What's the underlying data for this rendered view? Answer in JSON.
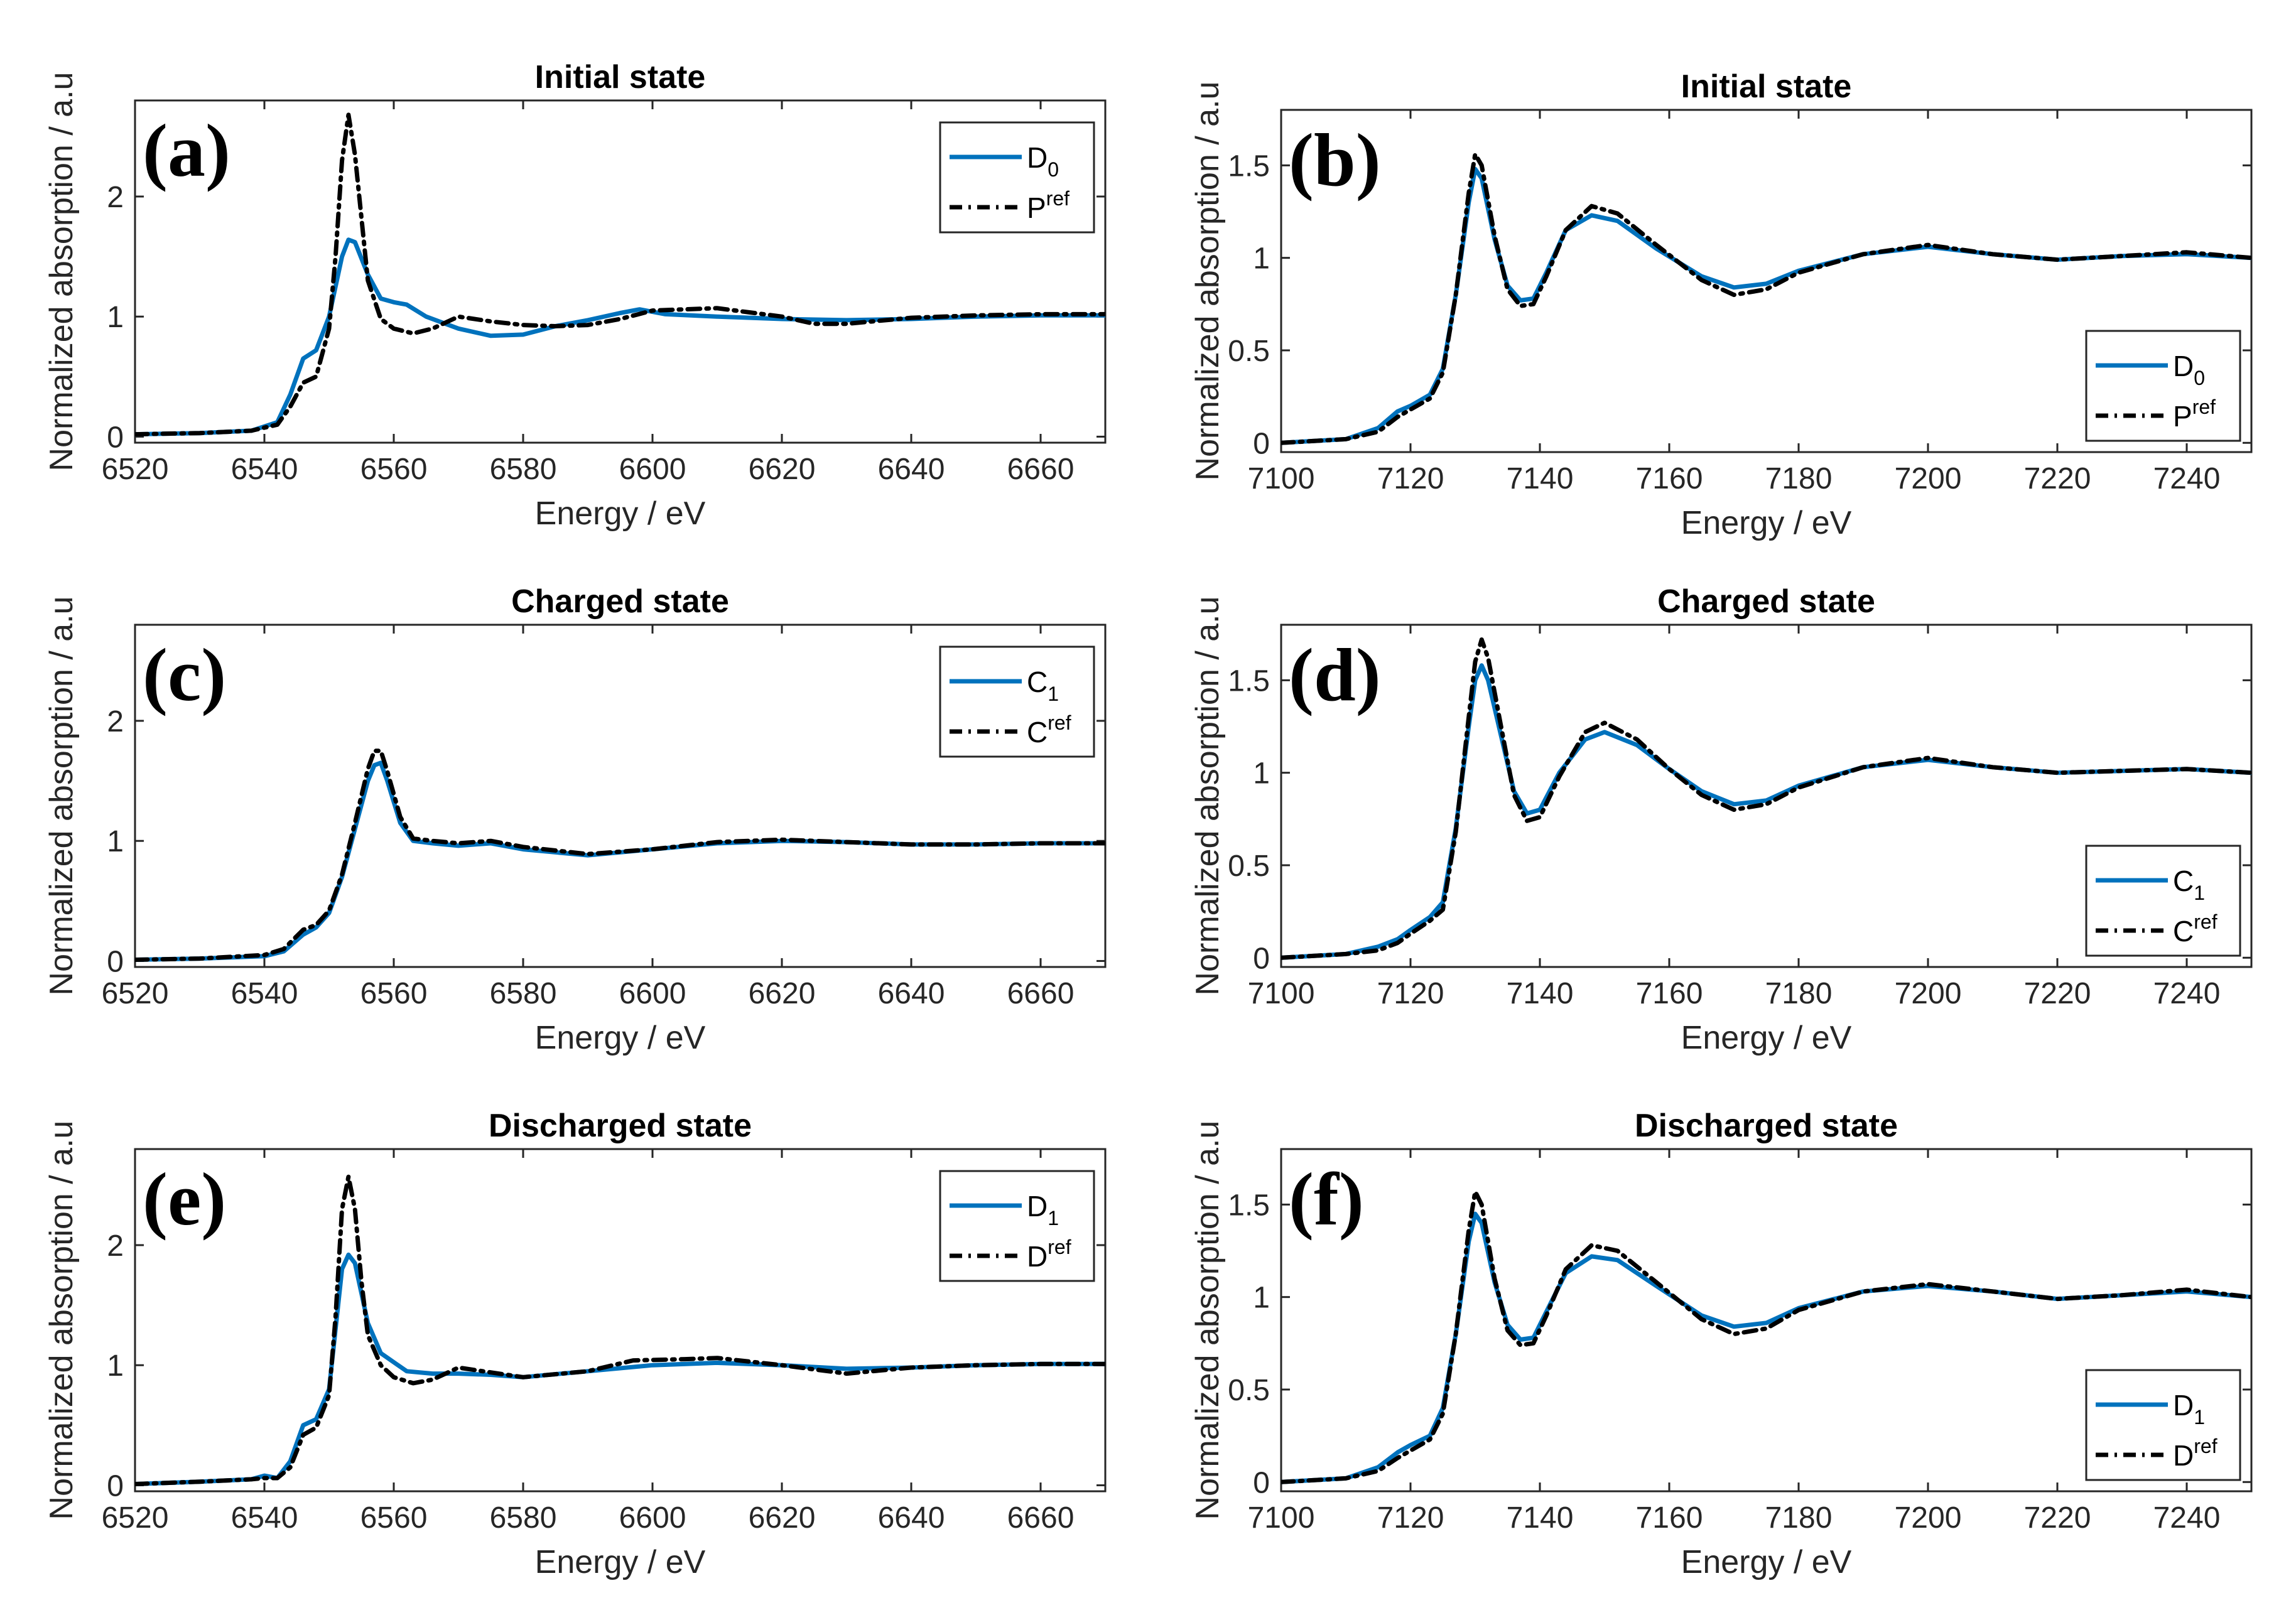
{
  "figure": {
    "colors": {
      "measured": "#0072BD",
      "reference": "#000000",
      "axis": "#262626"
    }
  },
  "chart_data": [
    {
      "panel": "(a)",
      "type": "line",
      "title": "Initial state",
      "xlabel": "Energy / eV",
      "ylabel": "Normalized absorption / a.u",
      "xlim": [
        6520,
        6670
      ],
      "ylim": [
        -0.05,
        2.8
      ],
      "xticks": [
        6520,
        6540,
        6560,
        6580,
        6600,
        6620,
        6640,
        6660
      ],
      "yticks": [
        0,
        1,
        2
      ],
      "ytick_labels": [
        "0",
        "1",
        "2"
      ],
      "legend_position": "top-right",
      "series": [
        {
          "name_main": "D",
          "name_script": "0",
          "script": "sub",
          "style": "solid",
          "x": [
            6520,
            6530,
            6538,
            6542,
            6544,
            6546,
            6548,
            6550,
            6552,
            6553,
            6554,
            6556,
            6558,
            6560,
            6562,
            6565,
            6570,
            6575,
            6580,
            6585,
            6590,
            6595,
            6598,
            6602,
            6610,
            6620,
            6630,
            6640,
            6650,
            6660,
            6670
          ],
          "y": [
            0.02,
            0.03,
            0.05,
            0.12,
            0.35,
            0.65,
            0.72,
            1.0,
            1.5,
            1.64,
            1.62,
            1.35,
            1.15,
            1.12,
            1.1,
            1.0,
            0.9,
            0.84,
            0.85,
            0.92,
            0.97,
            1.03,
            1.06,
            1.02,
            1.0,
            0.98,
            0.97,
            0.98,
            1.0,
            1.01,
            1.01
          ]
        },
        {
          "name_main": "P",
          "name_script": "ref",
          "script": "sup",
          "style": "dashdot",
          "x": [
            6520,
            6530,
            6538,
            6542,
            6544,
            6546,
            6548,
            6550,
            6551,
            6552,
            6553,
            6554,
            6556,
            6558,
            6560,
            6563,
            6566,
            6570,
            6575,
            6580,
            6585,
            6590,
            6595,
            6600,
            6610,
            6620,
            6625,
            6630,
            6640,
            6650,
            6660,
            6670
          ],
          "y": [
            0.02,
            0.03,
            0.05,
            0.1,
            0.25,
            0.45,
            0.5,
            0.9,
            1.5,
            2.3,
            2.68,
            2.35,
            1.3,
            0.98,
            0.9,
            0.86,
            0.9,
            1.0,
            0.96,
            0.93,
            0.92,
            0.93,
            0.98,
            1.05,
            1.07,
            1.0,
            0.94,
            0.94,
            0.99,
            1.01,
            1.02,
            1.02
          ]
        }
      ]
    },
    {
      "panel": "(b)",
      "type": "line",
      "title": "Initial state",
      "xlabel": "Energy / eV",
      "ylabel": "Normalized absorption / a.u",
      "xlim": [
        7100,
        7250
      ],
      "ylim": [
        -0.05,
        1.8
      ],
      "xticks": [
        7100,
        7120,
        7140,
        7160,
        7180,
        7200,
        7220,
        7240
      ],
      "yticks": [
        0,
        0.5,
        1,
        1.5
      ],
      "ytick_labels": [
        "0",
        "0.5",
        "1",
        "1.5"
      ],
      "legend_position": "bottom-right",
      "series": [
        {
          "name_main": "D",
          "name_script": "0",
          "script": "sub",
          "style": "solid",
          "x": [
            7100,
            7110,
            7115,
            7118,
            7120,
            7123,
            7125,
            7127,
            7129,
            7130,
            7131,
            7133,
            7135,
            7137,
            7139,
            7141,
            7144,
            7148,
            7152,
            7158,
            7165,
            7170,
            7175,
            7180,
            7190,
            7200,
            7210,
            7220,
            7230,
            7240,
            7250
          ],
          "y": [
            0.0,
            0.02,
            0.08,
            0.17,
            0.2,
            0.26,
            0.4,
            0.8,
            1.3,
            1.48,
            1.43,
            1.1,
            0.85,
            0.77,
            0.78,
            0.92,
            1.15,
            1.23,
            1.2,
            1.05,
            0.9,
            0.84,
            0.86,
            0.93,
            1.02,
            1.06,
            1.02,
            0.99,
            1.01,
            1.02,
            1.0
          ]
        },
        {
          "name_main": "P",
          "name_script": "ref",
          "script": "sup",
          "style": "dashdot",
          "x": [
            7100,
            7110,
            7115,
            7118,
            7120,
            7123,
            7125,
            7127,
            7129,
            7130,
            7131,
            7133,
            7135,
            7137,
            7139,
            7141,
            7144,
            7148,
            7152,
            7158,
            7165,
            7170,
            7175,
            7180,
            7190,
            7200,
            7210,
            7220,
            7230,
            7240,
            7250
          ],
          "y": [
            0.0,
            0.02,
            0.06,
            0.14,
            0.18,
            0.24,
            0.38,
            0.8,
            1.35,
            1.56,
            1.5,
            1.12,
            0.83,
            0.74,
            0.75,
            0.9,
            1.15,
            1.28,
            1.24,
            1.07,
            0.88,
            0.8,
            0.83,
            0.92,
            1.02,
            1.07,
            1.02,
            0.99,
            1.01,
            1.03,
            1.0
          ]
        }
      ]
    },
    {
      "panel": "(c)",
      "type": "line",
      "title": "Charged state",
      "xlabel": "Energy / eV",
      "ylabel": "Normalized absorption / a.u",
      "xlim": [
        6520,
        6670
      ],
      "ylim": [
        -0.05,
        2.8
      ],
      "xticks": [
        6520,
        6540,
        6560,
        6580,
        6600,
        6620,
        6640,
        6660
      ],
      "yticks": [
        0,
        1,
        2
      ],
      "ytick_labels": [
        "0",
        "1",
        "2"
      ],
      "legend_position": "top-right",
      "series": [
        {
          "name_main": "C",
          "name_script": "1",
          "script": "sub",
          "style": "solid",
          "x": [
            6520,
            6530,
            6540,
            6543,
            6546,
            6548,
            6550,
            6552,
            6554,
            6556,
            6557,
            6558,
            6559,
            6561,
            6563,
            6566,
            6570,
            6575,
            6580,
            6590,
            6600,
            6610,
            6620,
            6630,
            6640,
            6650,
            6660,
            6670
          ],
          "y": [
            0.01,
            0.02,
            0.04,
            0.08,
            0.22,
            0.28,
            0.4,
            0.7,
            1.1,
            1.5,
            1.63,
            1.65,
            1.5,
            1.15,
            1.0,
            0.98,
            0.96,
            0.98,
            0.93,
            0.88,
            0.93,
            0.98,
            1.0,
            0.99,
            0.97,
            0.97,
            0.98,
            0.98
          ]
        },
        {
          "name_main": "C",
          "name_script": "ref",
          "script": "sup",
          "style": "dashdot",
          "x": [
            6520,
            6530,
            6540,
            6543,
            6546,
            6548,
            6550,
            6552,
            6554,
            6556,
            6557,
            6558,
            6559,
            6561,
            6563,
            6566,
            6570,
            6575,
            6580,
            6590,
            6600,
            6610,
            6620,
            6630,
            6640,
            6650,
            6660,
            6670
          ],
          "y": [
            0.01,
            0.02,
            0.05,
            0.1,
            0.26,
            0.3,
            0.42,
            0.72,
            1.15,
            1.6,
            1.75,
            1.75,
            1.58,
            1.2,
            1.02,
            1.0,
            0.98,
            1.0,
            0.95,
            0.89,
            0.93,
            0.99,
            1.01,
            0.99,
            0.97,
            0.97,
            0.98,
            0.98
          ]
        }
      ]
    },
    {
      "panel": "(d)",
      "type": "line",
      "title": "Charged state",
      "xlabel": "Energy / eV",
      "ylabel": "Normalized absorption / a.u",
      "xlim": [
        7100,
        7250
      ],
      "ylim": [
        -0.05,
        1.8
      ],
      "xticks": [
        7100,
        7120,
        7140,
        7160,
        7180,
        7200,
        7220,
        7240
      ],
      "yticks": [
        0,
        0.5,
        1,
        1.5
      ],
      "ytick_labels": [
        "0",
        "0.5",
        "1",
        "1.5"
      ],
      "legend_position": "bottom-right",
      "series": [
        {
          "name_main": "C",
          "name_script": "1",
          "script": "sub",
          "style": "solid",
          "x": [
            7100,
            7110,
            7115,
            7118,
            7120,
            7123,
            7125,
            7127,
            7129,
            7130,
            7131,
            7132,
            7134,
            7136,
            7138,
            7140,
            7143,
            7147,
            7150,
            7155,
            7160,
            7165,
            7170,
            7175,
            7180,
            7190,
            7200,
            7210,
            7220,
            7230,
            7240,
            7250
          ],
          "y": [
            0.0,
            0.02,
            0.06,
            0.1,
            0.15,
            0.22,
            0.3,
            0.7,
            1.25,
            1.5,
            1.58,
            1.5,
            1.2,
            0.9,
            0.78,
            0.8,
            1.0,
            1.18,
            1.22,
            1.15,
            1.02,
            0.9,
            0.83,
            0.85,
            0.93,
            1.03,
            1.07,
            1.03,
            1.0,
            1.01,
            1.02,
            1.0
          ]
        },
        {
          "name_main": "C",
          "name_script": "ref",
          "script": "sup",
          "style": "dashdot",
          "x": [
            7100,
            7110,
            7115,
            7118,
            7120,
            7123,
            7125,
            7127,
            7129,
            7130,
            7131,
            7132,
            7134,
            7136,
            7138,
            7140,
            7143,
            7147,
            7150,
            7155,
            7160,
            7165,
            7170,
            7175,
            7180,
            7190,
            7200,
            7210,
            7220,
            7230,
            7240,
            7250
          ],
          "y": [
            0.0,
            0.02,
            0.04,
            0.08,
            0.13,
            0.2,
            0.26,
            0.68,
            1.3,
            1.6,
            1.72,
            1.62,
            1.25,
            0.88,
            0.74,
            0.76,
            0.98,
            1.22,
            1.27,
            1.18,
            1.02,
            0.88,
            0.8,
            0.83,
            0.92,
            1.03,
            1.08,
            1.03,
            1.0,
            1.01,
            1.02,
            1.0
          ]
        }
      ]
    },
    {
      "panel": "(e)",
      "type": "line",
      "title": "Discharged state",
      "xlabel": "Energy / eV",
      "ylabel": "Normalized absorption / a.u",
      "xlim": [
        6520,
        6670
      ],
      "ylim": [
        -0.05,
        2.8
      ],
      "xticks": [
        6520,
        6540,
        6560,
        6580,
        6600,
        6620,
        6640,
        6660
      ],
      "yticks": [
        0,
        1,
        2
      ],
      "ytick_labels": [
        "0",
        "1",
        "2"
      ],
      "legend_position": "top-right",
      "series": [
        {
          "name_main": "D",
          "name_script": "1",
          "script": "sub",
          "style": "solid",
          "x": [
            6520,
            6530,
            6538,
            6540,
            6542,
            6544,
            6546,
            6548,
            6550,
            6551,
            6552,
            6553,
            6554,
            6556,
            6558,
            6562,
            6566,
            6570,
            6575,
            6580,
            6590,
            6600,
            6610,
            6620,
            6630,
            6640,
            6650,
            6660,
            6670
          ],
          "y": [
            0.01,
            0.03,
            0.05,
            0.08,
            0.06,
            0.2,
            0.5,
            0.55,
            0.8,
            1.3,
            1.8,
            1.92,
            1.85,
            1.35,
            1.1,
            0.95,
            0.93,
            0.93,
            0.92,
            0.9,
            0.95,
            1.0,
            1.02,
            1.0,
            0.97,
            0.98,
            1.0,
            1.01,
            1.01
          ]
        },
        {
          "name_main": "D",
          "name_script": "ref",
          "script": "sup",
          "style": "dashdot",
          "x": [
            6520,
            6530,
            6538,
            6540,
            6542,
            6544,
            6546,
            6548,
            6550,
            6551,
            6552,
            6553,
            6554,
            6555,
            6556,
            6558,
            6560,
            6563,
            6566,
            6570,
            6575,
            6580,
            6590,
            6597,
            6605,
            6610,
            6620,
            6630,
            6640,
            6650,
            6660,
            6670
          ],
          "y": [
            0.01,
            0.03,
            0.05,
            0.06,
            0.06,
            0.15,
            0.42,
            0.48,
            0.75,
            1.4,
            2.3,
            2.57,
            2.3,
            1.7,
            1.25,
            1.0,
            0.9,
            0.85,
            0.88,
            0.98,
            0.94,
            0.9,
            0.95,
            1.04,
            1.05,
            1.06,
            1.0,
            0.93,
            0.98,
            1.0,
            1.01,
            1.01
          ]
        }
      ]
    },
    {
      "panel": "(f)",
      "type": "line",
      "title": "Discharged state",
      "xlabel": "Energy / eV",
      "ylabel": "Normalized absorption / a.u",
      "xlim": [
        7100,
        7250
      ],
      "ylim": [
        -0.05,
        1.8
      ],
      "xticks": [
        7100,
        7120,
        7140,
        7160,
        7180,
        7200,
        7220,
        7240
      ],
      "yticks": [
        0,
        0.5,
        1,
        1.5
      ],
      "ytick_labels": [
        "0",
        "0.5",
        "1",
        "1.5"
      ],
      "legend_position": "bottom-right",
      "series": [
        {
          "name_main": "D",
          "name_script": "1",
          "script": "sub",
          "style": "solid",
          "x": [
            7100,
            7110,
            7115,
            7118,
            7120,
            7123,
            7125,
            7127,
            7129,
            7130,
            7131,
            7133,
            7135,
            7137,
            7139,
            7141,
            7144,
            7148,
            7152,
            7158,
            7165,
            7170,
            7175,
            7180,
            7190,
            7200,
            7210,
            7220,
            7230,
            7240,
            7250
          ],
          "y": [
            0.0,
            0.02,
            0.08,
            0.16,
            0.2,
            0.25,
            0.4,
            0.8,
            1.3,
            1.45,
            1.4,
            1.08,
            0.85,
            0.77,
            0.78,
            0.92,
            1.13,
            1.22,
            1.2,
            1.06,
            0.9,
            0.84,
            0.86,
            0.94,
            1.03,
            1.06,
            1.03,
            0.99,
            1.01,
            1.03,
            1.0
          ]
        },
        {
          "name_main": "D",
          "name_script": "ref",
          "script": "sup",
          "style": "dashdot",
          "x": [
            7100,
            7110,
            7115,
            7118,
            7120,
            7123,
            7125,
            7127,
            7129,
            7130,
            7131,
            7133,
            7135,
            7137,
            7139,
            7141,
            7144,
            7148,
            7152,
            7158,
            7165,
            7170,
            7175,
            7180,
            7190,
            7200,
            7210,
            7220,
            7230,
            7240,
            7250
          ],
          "y": [
            0.0,
            0.02,
            0.06,
            0.13,
            0.17,
            0.23,
            0.37,
            0.8,
            1.36,
            1.57,
            1.5,
            1.1,
            0.82,
            0.74,
            0.75,
            0.9,
            1.15,
            1.28,
            1.25,
            1.08,
            0.88,
            0.8,
            0.83,
            0.93,
            1.03,
            1.07,
            1.03,
            0.99,
            1.01,
            1.04,
            1.0
          ]
        }
      ]
    }
  ]
}
